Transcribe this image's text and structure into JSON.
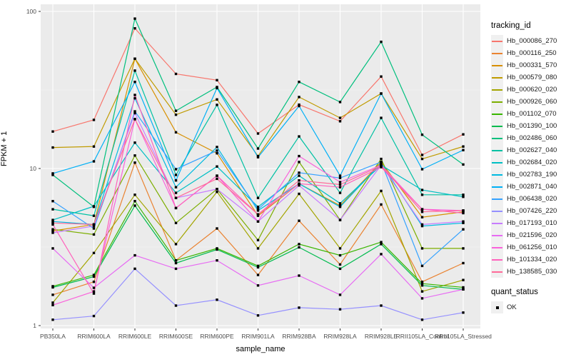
{
  "figure": {
    "y_axis": {
      "title": "FPKM + 1",
      "scale": "log10",
      "tick_labels": [
        "100",
        "10",
        "1"
      ],
      "tick_values": [
        100,
        10,
        1
      ],
      "minor_values": [
        31.6228,
        3.1623
      ]
    },
    "x_axis": {
      "title": "sample_name"
    },
    "legend": {
      "tracking_title": "tracking_id",
      "quant_title": "quant_status",
      "quant_items": [
        {
          "label": "OK",
          "marker": "black-square"
        }
      ]
    },
    "colors": {
      "panel_bg": "#EBEBEB",
      "grid_major": "#FFFFFF",
      "grid_minor": "#F7F7F7",
      "tick_text": "#4D4D4D",
      "tick_mark": "#333333",
      "point": "#000000",
      "legend_key_bg": "#F0F0F0"
    }
  },
  "chart_data": {
    "type": "line",
    "title": "",
    "xlabel": "sample_name",
    "ylabel": "FPKM + 1",
    "y_scale": "log10",
    "ylim": [
      1,
      110
    ],
    "y_ticks": [
      1,
      10,
      100
    ],
    "grid": true,
    "legend_position": "right",
    "point_marker": "filled-black-square",
    "categories": [
      "PB350LA",
      "RRIM600LA",
      "RRIM600LE",
      "RRIM600SE",
      "RRIM600PE",
      "RRIM901LA",
      "RRIM928BA",
      "RRIM928LA",
      "RRIM928LE",
      "RRII105LA_Control",
      "RRII105LA_Stressed"
    ],
    "series": [
      {
        "name": "Hb_000086_270",
        "color": "#F8766D",
        "values": [
          17.2,
          20.4,
          78,
          40,
          36.5,
          16.7,
          25.5,
          20,
          38.5,
          12.2,
          16.5
        ]
      },
      {
        "name": "Hb_000116_250",
        "color": "#EA8331",
        "values": [
          1.57,
          1.9,
          10.9,
          2.6,
          4.15,
          2.1,
          4.65,
          2.45,
          5.9,
          1.9,
          2.5
        ]
      },
      {
        "name": "Hb_000331_570",
        "color": "#D89000",
        "values": [
          4.0,
          4.4,
          50,
          17,
          12.5,
          5.0,
          8.0,
          5.8,
          11.0,
          4.9,
          5.3
        ]
      },
      {
        "name": "Hb_000579_080",
        "color": "#C09B00",
        "values": [
          13.6,
          13.8,
          50,
          22,
          27.5,
          12,
          28.5,
          21,
          30,
          11.5,
          13.8
        ]
      },
      {
        "name": "Hb_000620_020",
        "color": "#A3A500",
        "values": [
          1.4,
          2.9,
          6.8,
          3.3,
          7.1,
          3.1,
          6.9,
          3.1,
          7.2,
          1.65,
          1.95
        ]
      },
      {
        "name": "Hb_000926_060",
        "color": "#7CAE00",
        "values": [
          4.1,
          3.8,
          12.1,
          4.5,
          7.4,
          3.5,
          11.0,
          4.7,
          11.5,
          3.1,
          3.1
        ]
      },
      {
        "name": "Hb_001102_070",
        "color": "#39B600",
        "values": [
          1.78,
          2.1,
          6.2,
          2.6,
          3.1,
          2.4,
          3.3,
          2.8,
          3.4,
          1.85,
          1.75
        ]
      },
      {
        "name": "Hb_001390_100",
        "color": "#00BB4E",
        "values": [
          1.75,
          2.05,
          5.8,
          2.5,
          3.05,
          2.35,
          3.15,
          2.3,
          3.3,
          1.8,
          1.7
        ]
      },
      {
        "name": "Hb_002486_060",
        "color": "#00BF7D",
        "values": [
          9.1,
          5.7,
          90,
          23.3,
          33,
          13.4,
          35.6,
          26.5,
          64,
          16.4,
          10.6
        ]
      },
      {
        "name": "Hb_002627_040",
        "color": "#00C1A3",
        "values": [
          5.5,
          5.0,
          42,
          9.1,
          25.4,
          6.5,
          16,
          7.0,
          21,
          6.8,
          6.8
        ]
      },
      {
        "name": "Hb_002684_020",
        "color": "#00BFC4",
        "values": [
          4.7,
          5.75,
          14.6,
          7.0,
          10.3,
          5.7,
          9.0,
          6.0,
          10.5,
          7.3,
          6.6
        ]
      },
      {
        "name": "Hb_002783_190",
        "color": "#00BAE0",
        "values": [
          4.6,
          4.4,
          28,
          7.6,
          13.7,
          5.4,
          8.0,
          5.7,
          10.8,
          4.3,
          4.5
        ]
      },
      {
        "name": "Hb_002871_040",
        "color": "#00B0F6",
        "values": [
          9.3,
          11.1,
          35.6,
          8.4,
          32.5,
          11.8,
          25,
          9.0,
          30,
          9.9,
          13.1
        ]
      },
      {
        "name": "Hb_006438_020",
        "color": "#35A2FF",
        "values": [
          6.2,
          4.15,
          23.1,
          9.9,
          13.0,
          5.5,
          9.4,
          8.7,
          11.0,
          2.4,
          4.1
        ]
      },
      {
        "name": "Hb_007426_220",
        "color": "#9590FF",
        "values": [
          1.09,
          1.15,
          2.3,
          1.34,
          1.46,
          1.16,
          1.3,
          1.27,
          1.34,
          1.09,
          1.21
        ]
      },
      {
        "name": "Hb_017193_010",
        "color": "#C77CFF",
        "values": [
          3.9,
          4.3,
          22.5,
          6.5,
          7.4,
          4.6,
          7.8,
          4.7,
          10.5,
          4.4,
          4.6
        ]
      },
      {
        "name": "Hb_021596_020",
        "color": "#E76BF3",
        "values": [
          3.1,
          1.74,
          2.8,
          2.3,
          2.6,
          1.8,
          2.08,
          1.57,
          2.85,
          1.49,
          1.7
        ]
      },
      {
        "name": "Hb_061256_010",
        "color": "#FA62DB",
        "values": [
          1.35,
          1.65,
          20.6,
          5.6,
          9.0,
          4.6,
          12.0,
          8.2,
          10.5,
          5.5,
          5.4
        ]
      },
      {
        "name": "Hb_101334_020",
        "color": "#FF62BC",
        "values": [
          4.4,
          1.6,
          29.4,
          5.6,
          9.0,
          5.1,
          8.0,
          7.6,
          10.2,
          5.5,
          5.2
        ]
      },
      {
        "name": "Hb_138585_030",
        "color": "#FF6A98",
        "values": [
          4.5,
          4.4,
          20.6,
          6.5,
          8.6,
          5.1,
          8.4,
          7.9,
          10.4,
          5.3,
          5.4
        ]
      }
    ]
  }
}
